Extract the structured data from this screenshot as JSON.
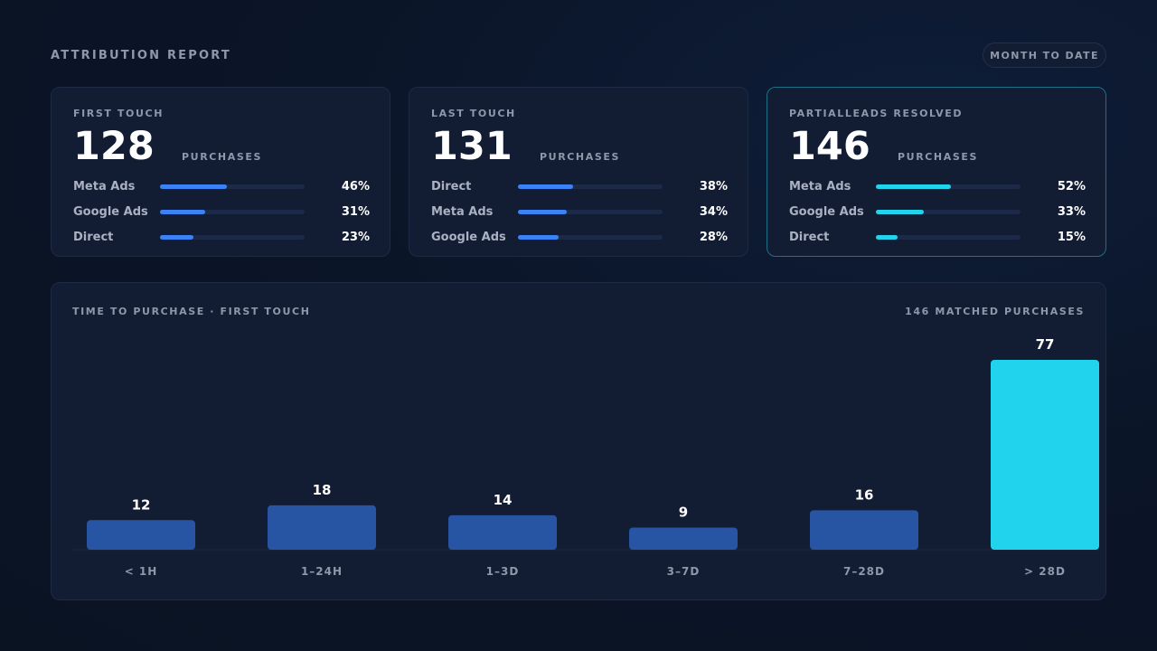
{
  "header": {
    "title": "ATTRIBUTION REPORT",
    "period": "MONTH TO DATE"
  },
  "cards": [
    {
      "label": "FIRST TOUCH",
      "value": "128",
      "unit": "PURCHASES",
      "accent": "#3b82f6",
      "sources": [
        {
          "name": "Meta Ads",
          "pct": "46%",
          "share": 0.46
        },
        {
          "name": "Google Ads",
          "pct": "31%",
          "share": 0.31
        },
        {
          "name": "Direct",
          "pct": "23%",
          "share": 0.23
        }
      ]
    },
    {
      "label": "LAST TOUCH",
      "value": "131",
      "unit": "PURCHASES",
      "accent": "#3b82f6",
      "sources": [
        {
          "name": "Direct",
          "pct": "38%",
          "share": 0.38
        },
        {
          "name": "Meta Ads",
          "pct": "34%",
          "share": 0.34
        },
        {
          "name": "Google Ads",
          "pct": "28%",
          "share": 0.28
        }
      ]
    },
    {
      "label": "PARTIALLEADS RESOLVED",
      "value": "146",
      "unit": "PURCHASES",
      "accent": "#22d3ee",
      "sources": [
        {
          "name": "Meta Ads",
          "pct": "52%",
          "share": 0.52
        },
        {
          "name": "Google Ads",
          "pct": "33%",
          "share": 0.33
        },
        {
          "name": "Direct",
          "pct": "15%",
          "share": 0.15
        }
      ]
    }
  ],
  "chart": {
    "title": "TIME TO PURCHASE · FIRST TOUCH",
    "total": "146 MATCHED PURCHASES"
  },
  "colors": {
    "bar": "#2754a3",
    "bar_highlight": "#22d3ee",
    "axis_label": "#8e98aa"
  },
  "chart_data": {
    "type": "bar",
    "categories": [
      "< 1H",
      "1–24H",
      "1–3D",
      "3–7D",
      "7–28D",
      "> 28D"
    ],
    "values": [
      12,
      18,
      14,
      9,
      16,
      77
    ],
    "highlight_index": 5,
    "title": "TIME TO PURCHASE · FIRST TOUCH",
    "xlabel": "",
    "ylabel": "",
    "ylim": [
      0,
      77
    ],
    "grid": false,
    "legend": "none"
  }
}
